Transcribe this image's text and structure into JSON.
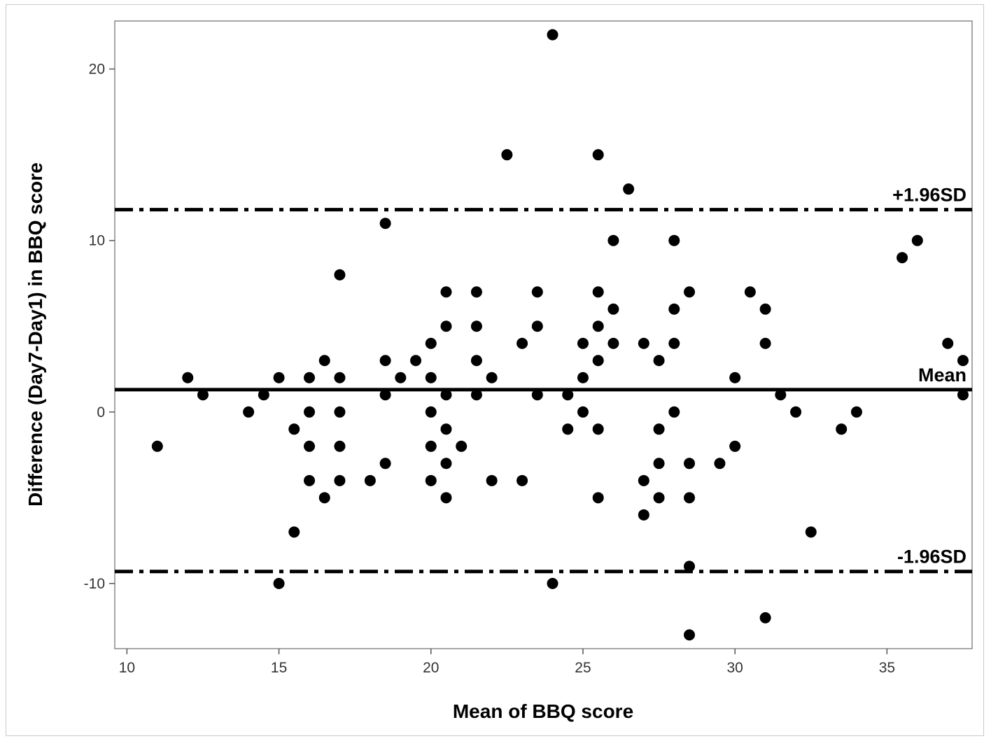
{
  "chart_data": {
    "type": "scatter",
    "xlabel": "Mean of BBQ score",
    "ylabel": "Difference (Day7-Day1) in BBQ score",
    "xlim": [
      9.6,
      37.8
    ],
    "ylim": [
      -13.8,
      22.8
    ],
    "x_ticks": [
      10,
      15,
      20,
      25,
      30,
      35
    ],
    "y_ticks": [
      20,
      10,
      0,
      -10
    ],
    "grid": false,
    "legend": "none",
    "marker_color": "#000000",
    "points": [
      {
        "x": 11,
        "y": -2
      },
      {
        "x": 12,
        "y": 2
      },
      {
        "x": 12.5,
        "y": 1
      },
      {
        "x": 14,
        "y": 0
      },
      {
        "x": 14.5,
        "y": 1
      },
      {
        "x": 15,
        "y": 2
      },
      {
        "x": 15,
        "y": -10
      },
      {
        "x": 15.5,
        "y": -1
      },
      {
        "x": 15.5,
        "y": -7
      },
      {
        "x": 16,
        "y": 2
      },
      {
        "x": 16,
        "y": 0
      },
      {
        "x": 16,
        "y": -2
      },
      {
        "x": 16,
        "y": -4
      },
      {
        "x": 16.5,
        "y": 3
      },
      {
        "x": 16.5,
        "y": -5
      },
      {
        "x": 17,
        "y": 8
      },
      {
        "x": 17,
        "y": 2
      },
      {
        "x": 17,
        "y": 0
      },
      {
        "x": 17,
        "y": -2
      },
      {
        "x": 17,
        "y": -4
      },
      {
        "x": 18,
        "y": -4
      },
      {
        "x": 18.5,
        "y": 11
      },
      {
        "x": 18.5,
        "y": 3
      },
      {
        "x": 18.5,
        "y": 1
      },
      {
        "x": 18.5,
        "y": -3
      },
      {
        "x": 19,
        "y": 2
      },
      {
        "x": 19.5,
        "y": 3
      },
      {
        "x": 20,
        "y": 4
      },
      {
        "x": 20,
        "y": 2
      },
      {
        "x": 20,
        "y": 0
      },
      {
        "x": 20,
        "y": -2
      },
      {
        "x": 20,
        "y": -4
      },
      {
        "x": 20.5,
        "y": 7
      },
      {
        "x": 20.5,
        "y": 5
      },
      {
        "x": 20.5,
        "y": 1
      },
      {
        "x": 20.5,
        "y": -1
      },
      {
        "x": 20.5,
        "y": -3
      },
      {
        "x": 20.5,
        "y": -5
      },
      {
        "x": 21,
        "y": -2
      },
      {
        "x": 21.5,
        "y": 7
      },
      {
        "x": 21.5,
        "y": 5
      },
      {
        "x": 21.5,
        "y": 3
      },
      {
        "x": 21.5,
        "y": 1
      },
      {
        "x": 22,
        "y": 2
      },
      {
        "x": 22,
        "y": -4
      },
      {
        "x": 22.5,
        "y": 15
      },
      {
        "x": 23,
        "y": 4
      },
      {
        "x": 23,
        "y": -4
      },
      {
        "x": 23.5,
        "y": 7
      },
      {
        "x": 23.5,
        "y": 5
      },
      {
        "x": 23.5,
        "y": 1
      },
      {
        "x": 24,
        "y": 22
      },
      {
        "x": 24,
        "y": -10
      },
      {
        "x": 24.5,
        "y": 1
      },
      {
        "x": 24.5,
        "y": -1
      },
      {
        "x": 25,
        "y": 4
      },
      {
        "x": 25,
        "y": 2
      },
      {
        "x": 25,
        "y": 0
      },
      {
        "x": 25.5,
        "y": 15
      },
      {
        "x": 25.5,
        "y": 7
      },
      {
        "x": 25.5,
        "y": 5
      },
      {
        "x": 25.5,
        "y": 3
      },
      {
        "x": 25.5,
        "y": -1
      },
      {
        "x": 25.5,
        "y": -5
      },
      {
        "x": 26,
        "y": 10
      },
      {
        "x": 26,
        "y": 6
      },
      {
        "x": 26,
        "y": 4
      },
      {
        "x": 26.5,
        "y": 13
      },
      {
        "x": 27,
        "y": 4
      },
      {
        "x": 27,
        "y": -4
      },
      {
        "x": 27,
        "y": -6
      },
      {
        "x": 27.5,
        "y": 3
      },
      {
        "x": 27.5,
        "y": -1
      },
      {
        "x": 27.5,
        "y": -3
      },
      {
        "x": 27.5,
        "y": -5
      },
      {
        "x": 28,
        "y": 10
      },
      {
        "x": 28,
        "y": 6
      },
      {
        "x": 28,
        "y": 4
      },
      {
        "x": 28,
        "y": 0
      },
      {
        "x": 28.5,
        "y": 7
      },
      {
        "x": 28.5,
        "y": -3
      },
      {
        "x": 28.5,
        "y": -5
      },
      {
        "x": 28.5,
        "y": -9
      },
      {
        "x": 28.5,
        "y": -13
      },
      {
        "x": 29.5,
        "y": -3
      },
      {
        "x": 30,
        "y": 2
      },
      {
        "x": 30,
        "y": -2
      },
      {
        "x": 30.5,
        "y": 7
      },
      {
        "x": 31,
        "y": 6
      },
      {
        "x": 31,
        "y": 4
      },
      {
        "x": 31,
        "y": -12
      },
      {
        "x": 31.5,
        "y": 1
      },
      {
        "x": 32,
        "y": 0
      },
      {
        "x": 32.5,
        "y": -7
      },
      {
        "x": 33.5,
        "y": -1
      },
      {
        "x": 34,
        "y": 0
      },
      {
        "x": 35.5,
        "y": 9
      },
      {
        "x": 36,
        "y": 10
      },
      {
        "x": 37,
        "y": 4
      },
      {
        "x": 37.5,
        "y": 3
      },
      {
        "x": 37.5,
        "y": 1
      }
    ],
    "reference_lines": [
      {
        "label": "+1.96SD",
        "y": 11.8,
        "style": "dash-dot"
      },
      {
        "label": "Mean",
        "y": 1.3,
        "style": "solid"
      },
      {
        "label": "-1.96SD",
        "y": -9.3,
        "style": "dash-dot"
      }
    ]
  }
}
